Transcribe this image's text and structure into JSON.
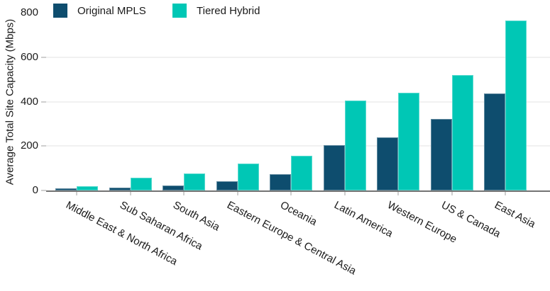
{
  "chart_data": {
    "type": "bar",
    "title": "",
    "xlabel": "",
    "ylabel": "Average Total Site Capacity (Mbps)",
    "categories": [
      "Middle East & North Africa",
      "Sub Saharan Africa",
      "South Asia",
      "Eastern Europe & Central Asia",
      "Oceania",
      "Latin America",
      "Western Europe",
      "US & Canada",
      "East Asia"
    ],
    "series": [
      {
        "name": "Original MPLS",
        "color": "#0e4d6e",
        "values": [
          8,
          12,
          22,
          40,
          72,
          205,
          238,
          322,
          438
        ]
      },
      {
        "name": "Tiered Hybrid",
        "color": "#00c7b5",
        "values": [
          18,
          58,
          75,
          120,
          155,
          405,
          440,
          520,
          765
        ]
      }
    ],
    "ylim": [
      0,
      800
    ],
    "yticks": [
      0,
      200,
      400,
      600,
      800
    ],
    "gridline_values": [
      200,
      400,
      600
    ],
    "ytick_mark_values": [
      0,
      200,
      400,
      600
    ],
    "grid": "horizontal",
    "legend_position": "top-left"
  },
  "colors": {
    "original_mpls": "#0e4d6e",
    "tiered_hybrid": "#00c7b5",
    "axis_line": "#737373",
    "gridline": "#f1f1f1",
    "tick_mark": "#cfcfcf",
    "text": "#1a1a1a",
    "background": "#ffffff"
  }
}
